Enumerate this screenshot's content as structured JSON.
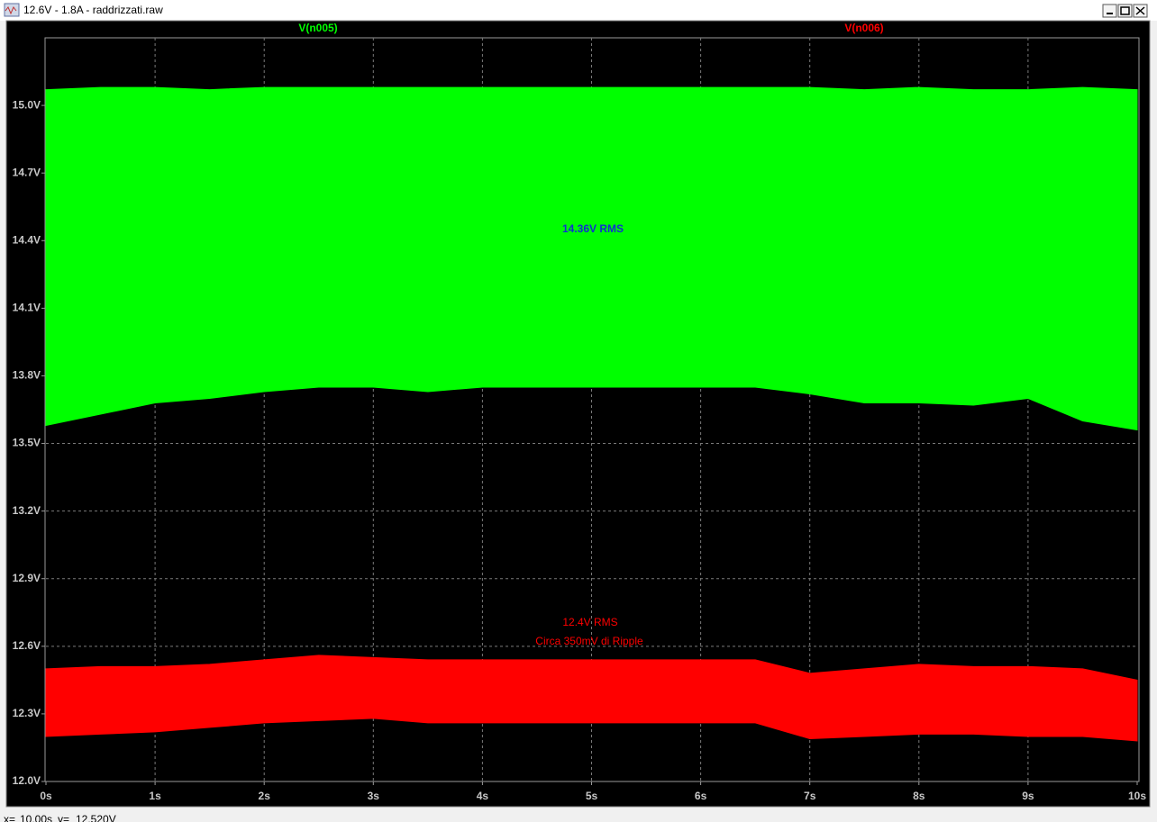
{
  "window": {
    "title": "12.6V - 1.8A - raddrizzati.raw"
  },
  "status_bar": {
    "x_label": "x=",
    "x_value": "10.00s",
    "y_label": "y=",
    "y_value": "12.520V"
  },
  "chart_data": {
    "type": "band",
    "x": [
      0,
      0.5,
      1,
      1.5,
      2,
      2.5,
      3,
      3.5,
      4,
      4.5,
      5,
      5.5,
      6,
      6.5,
      7,
      7.5,
      8,
      8.5,
      9,
      9.5,
      10
    ],
    "series": [
      {
        "name": "V(n005)",
        "color": "#00ff00",
        "max": [
          15.07,
          15.08,
          15.08,
          15.07,
          15.08,
          15.08,
          15.08,
          15.08,
          15.08,
          15.08,
          15.08,
          15.08,
          15.08,
          15.08,
          15.08,
          15.07,
          15.08,
          15.07,
          15.07,
          15.08,
          15.07
        ],
        "min": [
          13.58,
          13.63,
          13.68,
          13.7,
          13.73,
          13.75,
          13.75,
          13.73,
          13.75,
          13.75,
          13.75,
          13.75,
          13.75,
          13.75,
          13.72,
          13.68,
          13.68,
          13.67,
          13.7,
          13.6,
          13.56
        ]
      },
      {
        "name": "V(n006)",
        "color": "#ff0000",
        "max": [
          12.5,
          12.51,
          12.51,
          12.52,
          12.54,
          12.56,
          12.55,
          12.54,
          12.54,
          12.54,
          12.54,
          12.54,
          12.54,
          12.54,
          12.48,
          12.5,
          12.52,
          12.51,
          12.51,
          12.5,
          12.45
        ],
        "min": [
          12.2,
          12.21,
          12.22,
          12.24,
          12.26,
          12.27,
          12.28,
          12.26,
          12.26,
          12.26,
          12.26,
          12.26,
          12.26,
          12.26,
          12.19,
          12.2,
          12.21,
          12.21,
          12.2,
          12.2,
          12.18
        ]
      }
    ],
    "xlim": [
      0,
      10
    ],
    "xticks": [
      {
        "value": 0,
        "label": "0s"
      },
      {
        "value": 1,
        "label": "1s"
      },
      {
        "value": 2,
        "label": "2s"
      },
      {
        "value": 3,
        "label": "3s"
      },
      {
        "value": 4,
        "label": "4s"
      },
      {
        "value": 5,
        "label": "5s"
      },
      {
        "value": 6,
        "label": "6s"
      },
      {
        "value": 7,
        "label": "7s"
      },
      {
        "value": 8,
        "label": "8s"
      },
      {
        "value": 9,
        "label": "9s"
      },
      {
        "value": 10,
        "label": "10s"
      }
    ],
    "ylim": [
      12,
      15.3
    ],
    "yticks": [
      {
        "value": 12,
        "label": "12.0V"
      },
      {
        "value": 12.3,
        "label": "12.3V"
      },
      {
        "value": 12.6,
        "label": "12.6V"
      },
      {
        "value": 12.9,
        "label": "12.9V"
      },
      {
        "value": 13.2,
        "label": "13.2V"
      },
      {
        "value": 13.5,
        "label": "13.5V"
      },
      {
        "value": 13.8,
        "label": "13.8V"
      },
      {
        "value": 14.1,
        "label": "14.1V"
      },
      {
        "value": 14.4,
        "label": "14.4V"
      },
      {
        "value": 14.7,
        "label": "14.7V"
      },
      {
        "value": 15,
        "label": "15.0V"
      }
    ],
    "grid": true,
    "annotations": [
      {
        "text": "14.36V RMS",
        "color": "#1030d0"
      },
      {
        "text": "12.4V RMS",
        "color": "#ff0000"
      },
      {
        "text": "Circa 350mV di Ripple",
        "color": "#ff0000"
      }
    ]
  }
}
